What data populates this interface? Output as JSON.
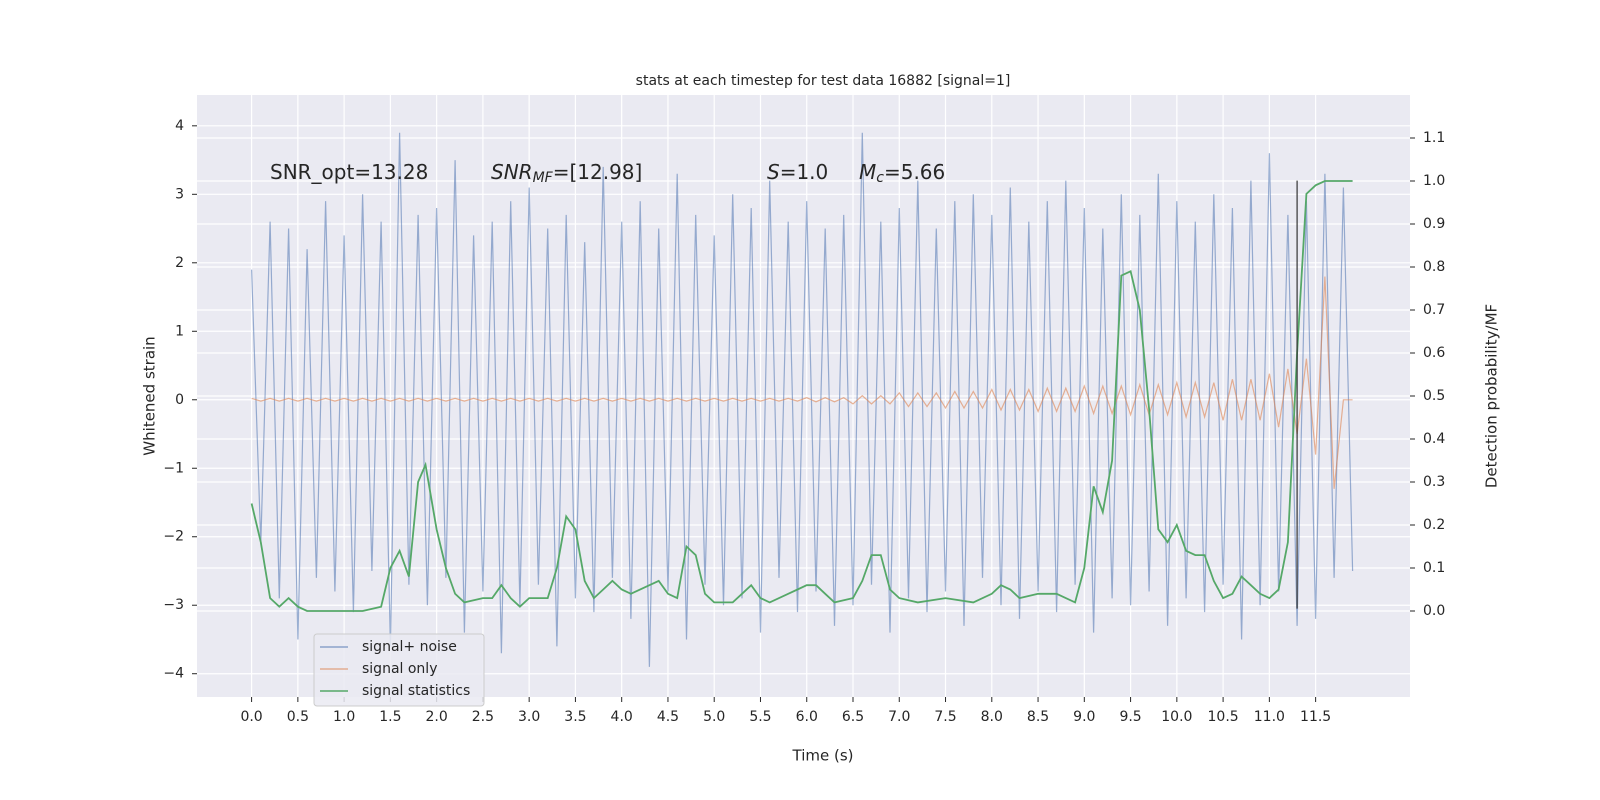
{
  "chart_data": {
    "type": "line",
    "title": "stats at each timestep for test data 16882 [signal=1]",
    "x_label": "Time (s)",
    "y_label": "Whitened strain",
    "y2_label": "Detection probability/MF",
    "annotations": [
      [
        "SNR_opt=13.28"
      ],
      [
        "SNR",
        "MF",
        "=[12.98]"
      ],
      [
        "S",
        "=1.0"
      ],
      [
        "M",
        "c",
        "=5.66"
      ]
    ],
    "x": [
      0,
      0.1,
      0.2,
      0.3,
      0.4,
      0.5,
      0.6,
      0.7,
      0.8,
      0.9,
      1,
      1.1,
      1.2,
      1.3,
      1.4,
      1.5,
      1.6,
      1.7,
      1.8,
      1.9,
      2,
      2.1,
      2.2,
      2.3,
      2.4,
      2.5,
      2.6,
      2.7,
      2.8,
      2.9,
      3,
      3.1,
      3.2,
      3.3,
      3.4,
      3.5,
      3.6,
      3.7,
      3.8,
      3.9,
      4,
      4.1,
      4.2,
      4.3,
      4.4,
      4.5,
      4.6,
      4.7,
      4.8,
      4.9,
      5,
      5.1,
      5.2,
      5.3,
      5.4,
      5.5,
      5.6,
      5.7,
      5.8,
      5.9,
      6,
      6.1,
      6.2,
      6.3,
      6.4,
      6.5,
      6.6,
      6.7,
      6.8,
      6.9,
      7,
      7.1,
      7.2,
      7.3,
      7.4,
      7.5,
      7.6,
      7.7,
      7.8,
      7.9,
      8,
      8.1,
      8.2,
      8.3,
      8.4,
      8.5,
      8.6,
      8.7,
      8.8,
      8.9,
      9,
      9.1,
      9.2,
      9.3,
      9.4,
      9.5,
      9.6,
      9.7,
      9.8,
      9.9,
      10,
      10.1,
      10.2,
      10.3,
      10.4,
      10.5,
      10.6,
      10.7,
      10.8,
      10.9,
      11,
      11.1,
      11.2,
      11.3,
      11.4,
      11.5,
      11.6,
      11.7,
      11.8,
      11.9
    ],
    "series": [
      {
        "name": "signal+ noise",
        "color": "#4c72b0",
        "values": [
          1.9,
          -2.1,
          2.6,
          -2.9,
          2.5,
          -3.5,
          2.2,
          -2.6,
          2.9,
          -2.8,
          2.4,
          -3.1,
          3.0,
          -2.5,
          2.6,
          -3.6,
          3.9,
          -2.7,
          2.7,
          -3.0,
          2.8,
          -2.6,
          3.5,
          -3.4,
          2.4,
          -2.8,
          2.6,
          -3.7,
          2.9,
          -3.0,
          3.1,
          -2.7,
          2.5,
          -3.6,
          2.7,
          -2.9,
          2.3,
          -3.1,
          3.4,
          -2.6,
          2.6,
          -3.2,
          2.9,
          -3.9,
          2.5,
          -2.8,
          3.3,
          -3.5,
          2.7,
          -2.7,
          2.4,
          -3.0,
          3.0,
          -2.9,
          2.8,
          -3.4,
          3.2,
          -2.6,
          2.6,
          -3.1,
          2.9,
          -2.8,
          2.5,
          -3.3,
          2.7,
          -3.0,
          3.9,
          -2.7,
          2.6,
          -3.4,
          2.8,
          -2.9,
          3.2,
          -3.1,
          2.5,
          -2.8,
          2.9,
          -3.3,
          3.0,
          -2.6,
          2.7,
          -3.0,
          3.1,
          -3.2,
          2.6,
          -2.8,
          2.9,
          -3.1,
          3.2,
          -2.7,
          2.8,
          -3.4,
          2.5,
          -2.9,
          3.0,
          -3.0,
          2.7,
          -2.8,
          3.3,
          -3.3,
          2.9,
          -2.9,
          2.6,
          -3.1,
          3.0,
          -2.7,
          2.8,
          -3.5,
          3.2,
          -3.0,
          3.6,
          -2.8,
          2.7,
          -3.3,
          2.9,
          -3.2,
          3.3,
          -2.6,
          3.1,
          -2.5
        ]
      },
      {
        "name": "signal only",
        "color": "#dd8452",
        "values": [
          0.02,
          -0.02,
          0.02,
          -0.02,
          0.02,
          -0.02,
          0.02,
          -0.02,
          0.02,
          -0.02,
          0.02,
          -0.02,
          0.02,
          -0.02,
          0.02,
          -0.02,
          0.02,
          -0.02,
          0.02,
          -0.02,
          0.02,
          -0.02,
          0.02,
          -0.02,
          0.02,
          -0.02,
          0.02,
          -0.02,
          0.02,
          -0.02,
          0.02,
          -0.02,
          0.02,
          -0.02,
          0.02,
          -0.02,
          0.02,
          -0.02,
          0.02,
          -0.02,
          0.02,
          -0.02,
          0.02,
          -0.02,
          0.02,
          -0.02,
          0.02,
          -0.02,
          0.02,
          -0.02,
          0.02,
          -0.02,
          0.02,
          -0.02,
          0.02,
          -0.02,
          0.02,
          -0.02,
          0.02,
          -0.02,
          0.03,
          -0.03,
          0.03,
          -0.03,
          0.03,
          -0.06,
          0.06,
          -0.06,
          0.06,
          -0.06,
          0.1,
          -0.1,
          0.1,
          -0.1,
          0.1,
          -0.12,
          0.12,
          -0.12,
          0.12,
          -0.12,
          0.15,
          -0.15,
          0.15,
          -0.15,
          0.15,
          -0.17,
          0.17,
          -0.17,
          0.17,
          -0.17,
          0.2,
          -0.2,
          0.2,
          -0.2,
          0.2,
          -0.22,
          0.22,
          -0.22,
          0.22,
          -0.22,
          0.25,
          -0.25,
          0.25,
          -0.25,
          0.25,
          -0.3,
          0.3,
          -0.3,
          0.3,
          -0.3,
          0.38,
          -0.4,
          0.45,
          -0.5,
          0.6,
          -0.8,
          1.8,
          -1.3,
          0,
          0
        ]
      },
      {
        "name": "signal statistics",
        "color": "#55a868",
        "axis": "y2",
        "x": [
          0,
          0.1,
          0.2,
          0.3,
          0.4,
          0.5,
          0.6,
          0.8,
          1.0,
          1.2,
          1.4,
          1.5,
          1.6,
          1.7,
          1.8,
          1.88,
          2.0,
          2.1,
          2.2,
          2.3,
          2.5,
          2.6,
          2.7,
          2.8,
          2.9,
          3.0,
          3.2,
          3.3,
          3.4,
          3.5,
          3.6,
          3.7,
          3.8,
          3.9,
          4.0,
          4.1,
          4.3,
          4.4,
          4.5,
          4.6,
          4.7,
          4.8,
          4.9,
          5.0,
          5.2,
          5.3,
          5.4,
          5.5,
          5.6,
          5.8,
          5.9,
          6.0,
          6.1,
          6.2,
          6.3,
          6.5,
          6.6,
          6.7,
          6.8,
          6.9,
          7.0,
          7.2,
          7.5,
          7.8,
          8.0,
          8.1,
          8.2,
          8.3,
          8.5,
          8.7,
          8.9,
          9.0,
          9.1,
          9.2,
          9.3,
          9.4,
          9.5,
          9.6,
          9.7,
          9.8,
          9.9,
          10.0,
          10.1,
          10.2,
          10.3,
          10.4,
          10.5,
          10.6,
          10.7,
          10.8,
          10.9,
          11.0,
          11.1,
          11.2,
          11.3,
          11.4,
          11.5,
          11.6,
          11.9
        ],
        "values": [
          0.25,
          0.16,
          0.03,
          0.01,
          0.03,
          0.01,
          0.0,
          0.0,
          0.0,
          0.0,
          0.01,
          0.1,
          0.14,
          0.08,
          0.3,
          0.34,
          0.19,
          0.1,
          0.04,
          0.02,
          0.03,
          0.03,
          0.06,
          0.03,
          0.01,
          0.03,
          0.03,
          0.1,
          0.22,
          0.19,
          0.07,
          0.03,
          0.05,
          0.07,
          0.05,
          0.04,
          0.06,
          0.07,
          0.04,
          0.03,
          0.15,
          0.13,
          0.04,
          0.02,
          0.02,
          0.04,
          0.06,
          0.03,
          0.02,
          0.04,
          0.05,
          0.06,
          0.06,
          0.04,
          0.02,
          0.03,
          0.07,
          0.13,
          0.13,
          0.05,
          0.03,
          0.02,
          0.03,
          0.02,
          0.04,
          0.06,
          0.05,
          0.03,
          0.04,
          0.04,
          0.02,
          0.1,
          0.29,
          0.23,
          0.35,
          0.78,
          0.79,
          0.7,
          0.47,
          0.19,
          0.16,
          0.2,
          0.14,
          0.13,
          0.13,
          0.07,
          0.03,
          0.04,
          0.08,
          0.06,
          0.04,
          0.03,
          0.05,
          0.16,
          0.6,
          0.97,
          0.99,
          1.0,
          1.0
        ]
      }
    ],
    "marker_line": {
      "x": 11.3,
      "ymin": -3.05,
      "ymax": 3.2,
      "color": "#333333"
    },
    "xlim": [
      -0.59,
      12.52
    ],
    "ylim": [
      -4.34,
      4.45
    ],
    "y2lim": [
      -0.2,
      1.2
    ],
    "xticks": [
      {
        "value": 0,
        "label": "0.0"
      },
      {
        "value": 0.5,
        "label": "0.5"
      },
      {
        "value": 1,
        "label": "1.0"
      },
      {
        "value": 1.5,
        "label": "1.5"
      },
      {
        "value": 2,
        "label": "2.0"
      },
      {
        "value": 2.5,
        "label": "2.5"
      },
      {
        "value": 3,
        "label": "3.0"
      },
      {
        "value": 3.5,
        "label": "3.5"
      },
      {
        "value": 4,
        "label": "4.0"
      },
      {
        "value": 4.5,
        "label": "4.5"
      },
      {
        "value": 5,
        "label": "5.0"
      },
      {
        "value": 5.5,
        "label": "5.5"
      },
      {
        "value": 6,
        "label": "6.0"
      },
      {
        "value": 6.5,
        "label": "6.5"
      },
      {
        "value": 7,
        "label": "7.0"
      },
      {
        "value": 7.5,
        "label": "7.5"
      },
      {
        "value": 8,
        "label": "8.0"
      },
      {
        "value": 8.5,
        "label": "8.5"
      },
      {
        "value": 9,
        "label": "9.0"
      },
      {
        "value": 9.5,
        "label": "9.5"
      },
      {
        "value": 10,
        "label": "10.0"
      },
      {
        "value": 10.5,
        "label": "10.5"
      },
      {
        "value": 11,
        "label": "11.0"
      },
      {
        "value": 11.5,
        "label": "11.5"
      }
    ],
    "yticks": [
      {
        "value": -4,
        "label": "−4"
      },
      {
        "value": -3,
        "label": "−3"
      },
      {
        "value": -2,
        "label": "−2"
      },
      {
        "value": -1,
        "label": "−1"
      },
      0,
      1,
      2,
      3,
      4
    ],
    "y2ticks": [
      {
        "value": 0,
        "label": "0.0"
      },
      {
        "value": 0.1,
        "label": "0.1"
      },
      {
        "value": 0.2,
        "label": "0.2"
      },
      {
        "value": 0.3,
        "label": "0.3"
      },
      {
        "value": 0.4,
        "label": "0.4"
      },
      {
        "value": 0.5,
        "label": "0.5"
      },
      {
        "value": 0.6,
        "label": "0.6"
      },
      {
        "value": 0.7,
        "label": "0.7"
      },
      {
        "value": 0.8,
        "label": "0.8"
      },
      {
        "value": 0.9,
        "label": "0.9"
      },
      {
        "value": 1.0,
        "label": "1.0"
      },
      {
        "value": 1.1,
        "label": "1.1"
      }
    ],
    "grid": true,
    "legend": "lower left"
  }
}
